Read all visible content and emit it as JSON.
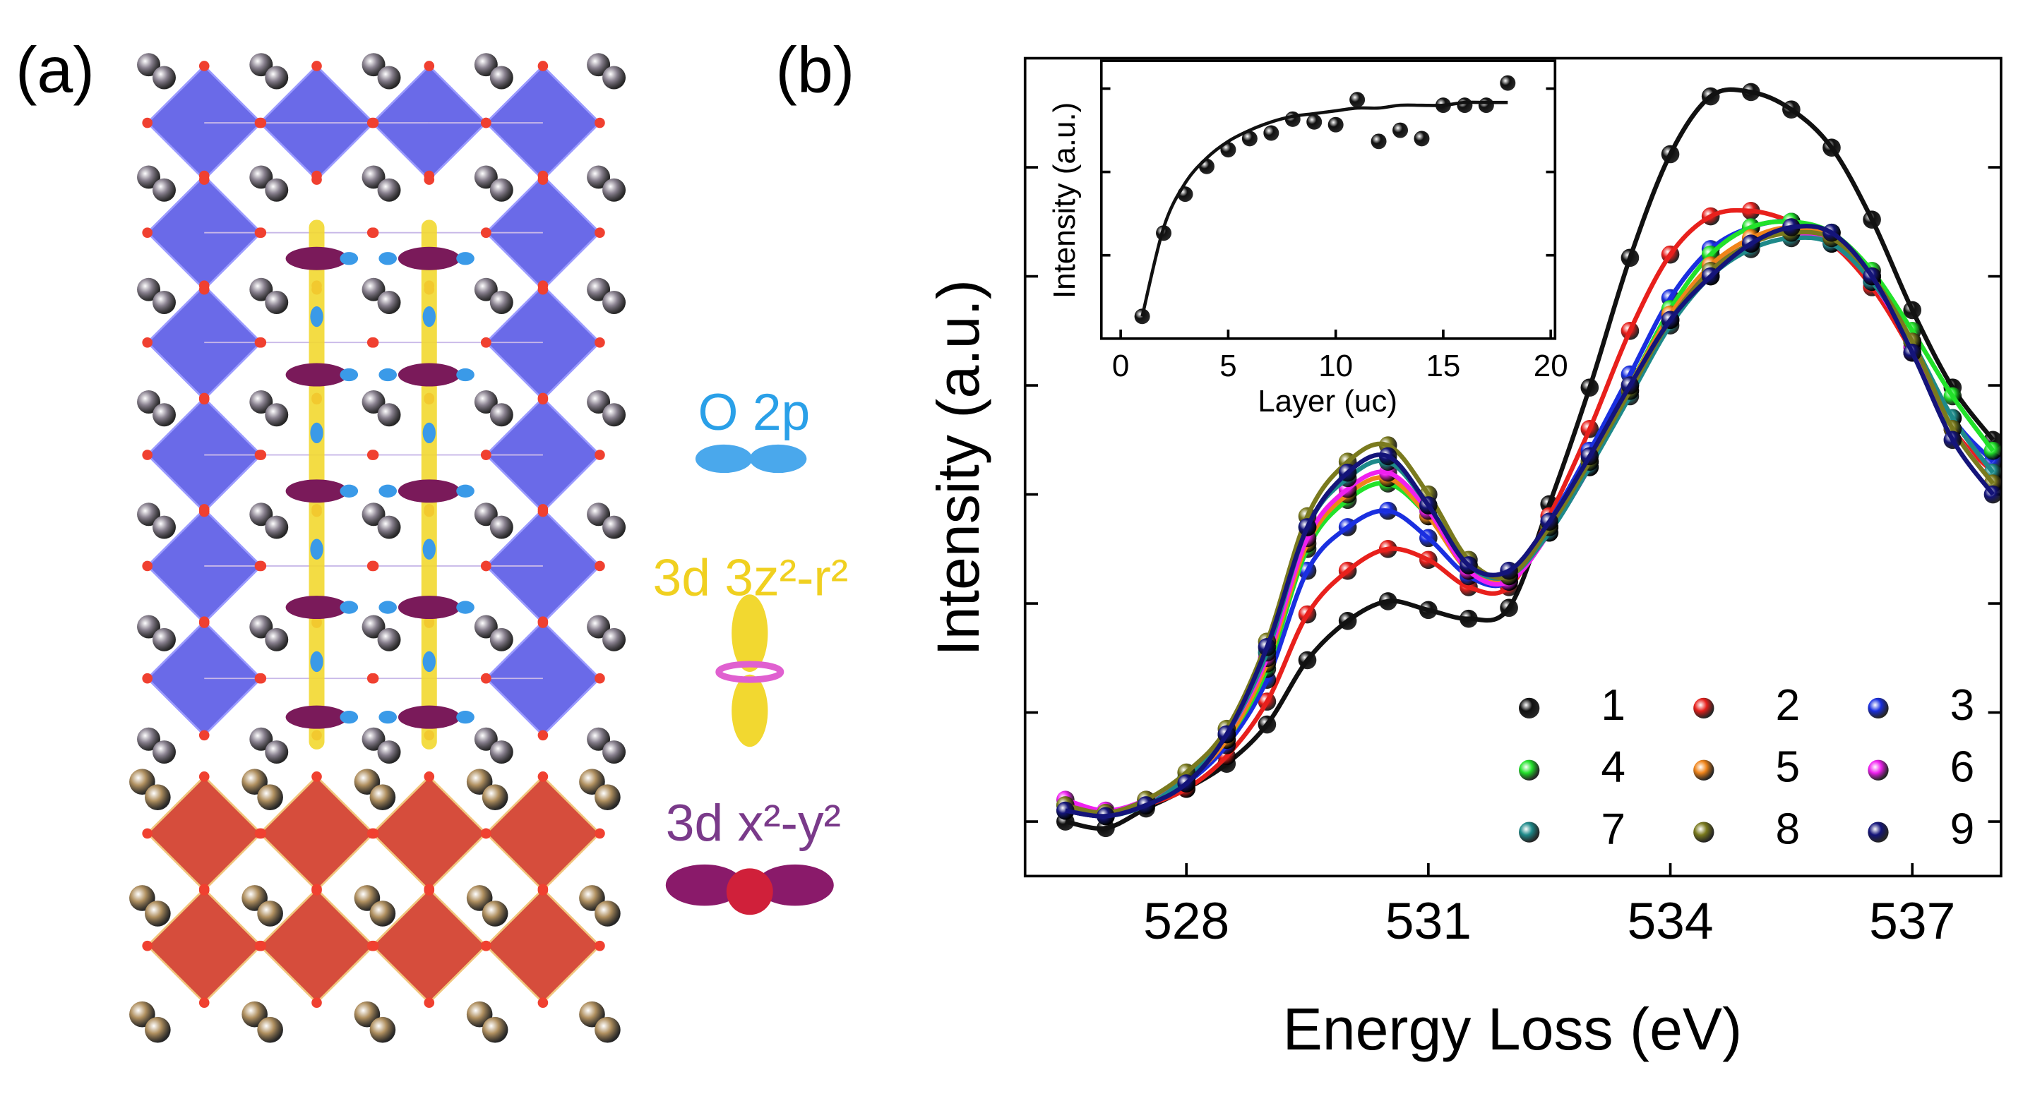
{
  "panel_a": {
    "label": "(a)",
    "orbitals": [
      "O 2p",
      "3d 3z²-r²",
      "3d x²-y²"
    ]
  },
  "chart_data": {
    "type": "line",
    "label": "(b)",
    "xlabel": "Energy Loss (eV)",
    "ylabel": "Intensity (a.u.)",
    "xlim": [
      526,
      538.1
    ],
    "xticks": [
      528,
      531,
      534,
      537
    ],
    "ylim": [
      -0.5,
      7
    ],
    "yticks": [
      0,
      1,
      2,
      3,
      4,
      5,
      6
    ],
    "legend": "lower right",
    "x": [
      526.5,
      527,
      527.5,
      528,
      528.5,
      529,
      529.5,
      530,
      530.5,
      531,
      531.5,
      532,
      532.5,
      533,
      533.5,
      534,
      534.5,
      535,
      535.5,
      536,
      536.5,
      537,
      537.5,
      538
    ],
    "series": [
      {
        "name": "1",
        "color": "#111111",
        "values": [
          0,
          -0.06,
          0.12,
          0.3,
          0.53,
          0.89,
          1.48,
          1.84,
          2.02,
          1.94,
          1.86,
          1.96,
          2.91,
          3.98,
          5.17,
          6.12,
          6.65,
          6.69,
          6.53,
          6.18,
          5.52,
          4.69,
          3.98,
          3.5
        ]
      },
      {
        "name": "2",
        "color": "#e8201c",
        "values": [
          0.1,
          0.05,
          0.15,
          0.3,
          0.6,
          1.1,
          1.9,
          2.3,
          2.5,
          2.4,
          2.15,
          2.15,
          2.8,
          3.6,
          4.5,
          5.2,
          5.55,
          5.6,
          5.5,
          5.3,
          4.9,
          4.3,
          3.6,
          3.2
        ]
      },
      {
        "name": "3",
        "color": "#1a2fe0",
        "values": [
          0.1,
          0.05,
          0.15,
          0.35,
          0.7,
          1.3,
          2.3,
          2.7,
          2.85,
          2.6,
          2.25,
          2.2,
          2.75,
          3.4,
          4.1,
          4.8,
          5.25,
          5.45,
          5.5,
          5.35,
          5.0,
          4.4,
          3.7,
          3.3
        ]
      },
      {
        "name": "4",
        "color": "#22e22a",
        "values": [
          0.15,
          0.08,
          0.2,
          0.4,
          0.75,
          1.4,
          2.5,
          2.95,
          3.1,
          2.8,
          2.35,
          2.25,
          2.7,
          3.3,
          4.0,
          4.7,
          5.2,
          5.45,
          5.5,
          5.4,
          5.05,
          4.5,
          3.9,
          3.4
        ]
      },
      {
        "name": "5",
        "color": "#f0841a",
        "values": [
          0.1,
          0.06,
          0.18,
          0.38,
          0.75,
          1.45,
          2.55,
          3.0,
          3.15,
          2.8,
          2.3,
          2.25,
          2.7,
          3.3,
          4.0,
          4.65,
          5.1,
          5.35,
          5.45,
          5.35,
          5.0,
          4.4,
          3.7,
          3.2
        ]
      },
      {
        "name": "6",
        "color": "#f020f0",
        "values": [
          0.2,
          0.1,
          0.2,
          0.4,
          0.8,
          1.5,
          2.6,
          3.05,
          3.2,
          2.85,
          2.3,
          2.2,
          2.65,
          3.25,
          3.95,
          4.6,
          5.05,
          5.3,
          5.4,
          5.3,
          4.95,
          4.35,
          3.6,
          3.1
        ]
      },
      {
        "name": "7",
        "color": "#1e8a8a",
        "values": [
          0.1,
          0.05,
          0.15,
          0.4,
          0.8,
          1.55,
          2.7,
          3.15,
          3.3,
          2.9,
          2.35,
          2.25,
          2.65,
          3.25,
          3.9,
          4.55,
          5.0,
          5.25,
          5.35,
          5.3,
          4.95,
          4.4,
          3.7,
          3.2
        ]
      },
      {
        "name": "8",
        "color": "#7a7a1e",
        "values": [
          0.15,
          0.08,
          0.2,
          0.45,
          0.85,
          1.65,
          2.8,
          3.3,
          3.45,
          3.0,
          2.4,
          2.25,
          2.7,
          3.3,
          3.95,
          4.6,
          5.05,
          5.3,
          5.4,
          5.35,
          5.0,
          4.4,
          3.6,
          3.1
        ]
      },
      {
        "name": "9",
        "color": "#14147a",
        "values": [
          0.1,
          0.05,
          0.15,
          0.35,
          0.8,
          1.6,
          2.7,
          3.2,
          3.35,
          2.9,
          2.35,
          2.3,
          2.75,
          3.35,
          4.0,
          4.6,
          5.0,
          5.3,
          5.45,
          5.4,
          5.0,
          4.3,
          3.5,
          3.0
        ]
      }
    ],
    "inset": {
      "type": "scatter",
      "xlabel": "Layer (uc)",
      "ylabel": "Intensity (a.u.)",
      "xlim": [
        -0.9,
        20.2
      ],
      "xticks": [
        0,
        5,
        10,
        15,
        20
      ],
      "ylim": [
        0,
        1
      ],
      "yticks": [
        0.3,
        0.6,
        0.9
      ],
      "x": [
        1,
        2,
        3,
        4,
        5,
        6,
        7,
        8,
        9,
        10,
        11,
        12,
        13,
        14,
        15,
        16,
        17,
        18
      ],
      "series": [
        {
          "color": "#111111",
          "style": "markers",
          "values": [
            0.08,
            0.38,
            0.52,
            0.62,
            0.68,
            0.72,
            0.74,
            0.79,
            0.78,
            0.77,
            0.86,
            0.71,
            0.75,
            0.72,
            0.84,
            0.84,
            0.84,
            0.92
          ]
        },
        {
          "color": "#111111",
          "style": "line",
          "values": [
            0.08,
            0.4,
            0.56,
            0.65,
            0.71,
            0.75,
            0.78,
            0.8,
            0.81,
            0.82,
            0.83,
            0.83,
            0.84,
            0.84,
            0.84,
            0.85,
            0.85,
            0.85
          ]
        }
      ]
    }
  }
}
